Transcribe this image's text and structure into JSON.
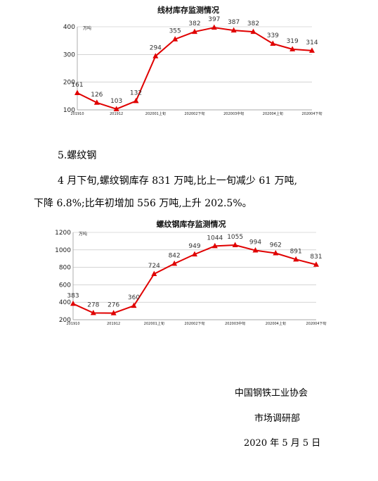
{
  "section": {
    "heading": "5.螺纹钢",
    "paragraph_line1": "4 月下旬,螺纹钢库存 831 万吨,比上一旬减少 61 万吨,",
    "paragraph_line2": "下降 6.8%;比年初增加 556 万吨,上升 202.5%。"
  },
  "signature": {
    "org": "中国钢铁工业协会",
    "dept": "市场调研部",
    "date": "2020 年 5 月 5 日"
  },
  "colors": {
    "series": "#e00000",
    "axis": "#999999",
    "grid": "#bbbbbb"
  },
  "chart_data": [
    {
      "type": "line",
      "title": "线材库存监测情况",
      "unit": "万吨",
      "categories": [
        "201910",
        "",
        "201912",
        "",
        "202001上旬",
        "",
        "202002下旬",
        "",
        "202003中旬",
        "",
        "202004上旬",
        "",
        "202004下旬"
      ],
      "series": [
        {
          "values": [
            161,
            126,
            103,
            132,
            294,
            355,
            382,
            397,
            387,
            382,
            339,
            319,
            314
          ]
        }
      ],
      "ylim": [
        100,
        400
      ],
      "yticks": [
        100,
        200,
        300,
        400
      ],
      "grid": true,
      "marker": "triangle"
    },
    {
      "type": "line",
      "title": "螺纹钢库存监测情况",
      "unit": "万吨",
      "categories": [
        "201910",
        "",
        "201912",
        "",
        "202001上旬",
        "",
        "202002下旬",
        "",
        "202003中旬",
        "",
        "202004上旬",
        "",
        "202004下旬"
      ],
      "series": [
        {
          "values": [
            383,
            278,
            276,
            360,
            724,
            842,
            949,
            1044,
            1055,
            994,
            962,
            891,
            831
          ]
        }
      ],
      "ylim": [
        200,
        1200
      ],
      "yticks": [
        200,
        400,
        600,
        800,
        1000,
        1200
      ],
      "grid": true,
      "marker": "triangle"
    }
  ]
}
